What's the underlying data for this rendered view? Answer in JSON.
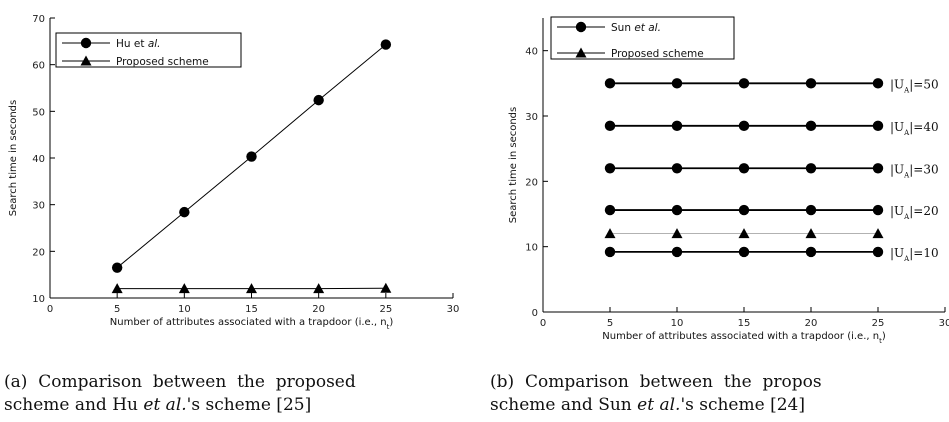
{
  "chart_data": [
    {
      "type": "line",
      "xlabel": "Number of attributes associated with a trapdoor (i.e., n",
      "xlabel_sub": "t",
      "xlabel_close": ")",
      "ylabel": "Search time in seconds",
      "xlim": [
        0,
        30
      ],
      "ylim": [
        10,
        70
      ],
      "xticks": [
        "0",
        "5",
        "10",
        "15",
        "20",
        "25",
        "30"
      ],
      "yticks": [
        "10",
        "20",
        "30",
        "40",
        "50",
        "60",
        "70"
      ],
      "legend_position": "top-left",
      "x": [
        5,
        10,
        15,
        20,
        25
      ],
      "series": [
        {
          "name": "Hu et al.",
          "name_main": "Hu et ",
          "name_italic": "al.",
          "marker": "circle",
          "values": [
            16.5,
            28.4,
            40.3,
            52.4,
            64.3
          ]
        },
        {
          "name": "Proposed scheme",
          "marker": "triangle",
          "values": [
            12,
            12,
            12,
            12,
            12.1
          ]
        }
      ],
      "caption": {
        "line1_a": "(a)  Comparison  between  the  proposed",
        "line2_a": "scheme and Hu ",
        "line2_it": "et al.",
        "line2_b": "'s scheme [25]"
      }
    },
    {
      "type": "line",
      "xlabel": "Number of attributes associated with a trapdoor (i.e., n",
      "xlabel_sub": "t",
      "xlabel_close": ")",
      "ylabel": "Search time in seconds",
      "xlim": [
        0,
        30
      ],
      "ylim": [
        0,
        45
      ],
      "xticks": [
        "0",
        "5",
        "10",
        "15",
        "20",
        "25",
        "30"
      ],
      "yticks": [
        "0",
        "10",
        "20",
        "30",
        "40"
      ],
      "legend_position": "top-left",
      "x": [
        5,
        10,
        15,
        20,
        25
      ],
      "series": [
        {
          "name": "Sun et al. |UA|=10",
          "marker": "circle",
          "label": "|U",
          "label_sub": "A",
          "label_tail": "|=10",
          "values": [
            9.2,
            9.2,
            9.2,
            9.2,
            9.2
          ]
        },
        {
          "name": "Sun et al. |UA|=20",
          "marker": "circle",
          "label": "|U",
          "label_sub": "A",
          "label_tail": "|=20",
          "values": [
            15.6,
            15.6,
            15.6,
            15.6,
            15.6
          ]
        },
        {
          "name": "Sun et al. |UA|=30",
          "marker": "circle",
          "label": "|U",
          "label_sub": "A",
          "label_tail": "|=30",
          "values": [
            22,
            22,
            22,
            22,
            22
          ]
        },
        {
          "name": "Sun et al. |UA|=40",
          "marker": "circle",
          "label": "|U",
          "label_sub": "A",
          "label_tail": "|=40",
          "values": [
            28.5,
            28.5,
            28.5,
            28.5,
            28.5
          ]
        },
        {
          "name": "Sun et al. |UA|=50",
          "marker": "circle",
          "label": "|U",
          "label_sub": "A",
          "label_tail": "|=50",
          "values": [
            35,
            35,
            35,
            35,
            35
          ]
        },
        {
          "name": "Proposed scheme",
          "marker": "triangle",
          "values": [
            12,
            12,
            12,
            12,
            12
          ]
        }
      ],
      "legend": [
        {
          "name_main": "Sun ",
          "name_italic": "et al.",
          "marker": "circle"
        },
        {
          "name_main": "Proposed scheme",
          "name_italic": "",
          "marker": "triangle"
        }
      ],
      "caption": {
        "line1_a": "(b)  Comparison  between  the  propos",
        "line2_a": "scheme and Sun ",
        "line2_it": "et al.",
        "line2_b": "'s scheme [24]"
      }
    }
  ]
}
